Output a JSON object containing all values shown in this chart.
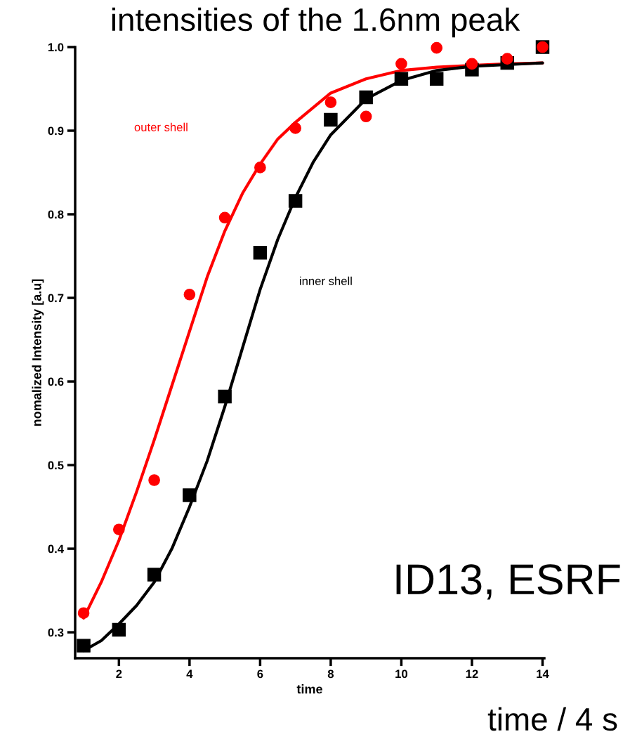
{
  "chart_data": {
    "type": "scatter",
    "title": "intensities of the 1.6nm peak",
    "xlabel": "time",
    "ylabel": "nomalized Intensity [a.u]",
    "xlim": [
      0.76,
      14.05
    ],
    "ylim": [
      0.269,
      1.0
    ],
    "xticks": [
      2,
      4,
      6,
      8,
      10,
      12,
      14
    ],
    "yticks": [
      0.3,
      0.4,
      0.5,
      0.6,
      0.7,
      0.8,
      0.9,
      {
        "value": 1.0,
        "label": "1.0"
      }
    ],
    "grid": false,
    "series": [
      {
        "name": "outer shell",
        "marker": "circle",
        "color": "#ff0000",
        "x": [
          1,
          2,
          3,
          4,
          5,
          6,
          7,
          8,
          9,
          10,
          11,
          12,
          13,
          14
        ],
        "values": [
          0.323,
          0.423,
          0.482,
          0.704,
          0.796,
          0.856,
          0.903,
          0.934,
          0.917,
          0.98,
          0.999,
          0.98,
          0.986,
          1.0
        ]
      },
      {
        "name": "inner shell",
        "marker": "square",
        "color": "#000000",
        "x": [
          1,
          2,
          3,
          4,
          5,
          6,
          7,
          8,
          9,
          10,
          11,
          12,
          13,
          14
        ],
        "values": [
          0.284,
          0.303,
          0.369,
          0.464,
          0.582,
          0.754,
          0.816,
          0.913,
          0.94,
          0.962,
          0.962,
          0.973,
          0.981,
          1.0
        ]
      },
      {
        "type": "line",
        "marker": "none",
        "color": "#ff0000",
        "x": [
          1,
          1.5,
          2,
          2.5,
          3,
          3.5,
          4,
          4.5,
          5,
          5.5,
          6,
          6.5,
          7,
          8,
          9,
          10,
          11,
          12,
          13,
          14
        ],
        "values": [
          0.317,
          0.36,
          0.41,
          0.468,
          0.53,
          0.595,
          0.66,
          0.725,
          0.78,
          0.825,
          0.86,
          0.89,
          0.91,
          0.945,
          0.962,
          0.972,
          0.976,
          0.978,
          0.98,
          0.981
        ]
      },
      {
        "type": "line",
        "marker": "none",
        "color": "#000000",
        "x": [
          1,
          1.5,
          2,
          2.5,
          3,
          3.5,
          4,
          4.5,
          5,
          5.5,
          6,
          6.5,
          7,
          7.5,
          8,
          9,
          10,
          11,
          12,
          13,
          14
        ],
        "values": [
          0.278,
          0.29,
          0.31,
          0.332,
          0.36,
          0.4,
          0.45,
          0.505,
          0.57,
          0.64,
          0.71,
          0.77,
          0.82,
          0.862,
          0.895,
          0.938,
          0.96,
          0.972,
          0.977,
          0.979,
          0.981
        ]
      }
    ],
    "annotations": [
      "ID13, ESRF",
      "time / 4 s"
    ]
  }
}
